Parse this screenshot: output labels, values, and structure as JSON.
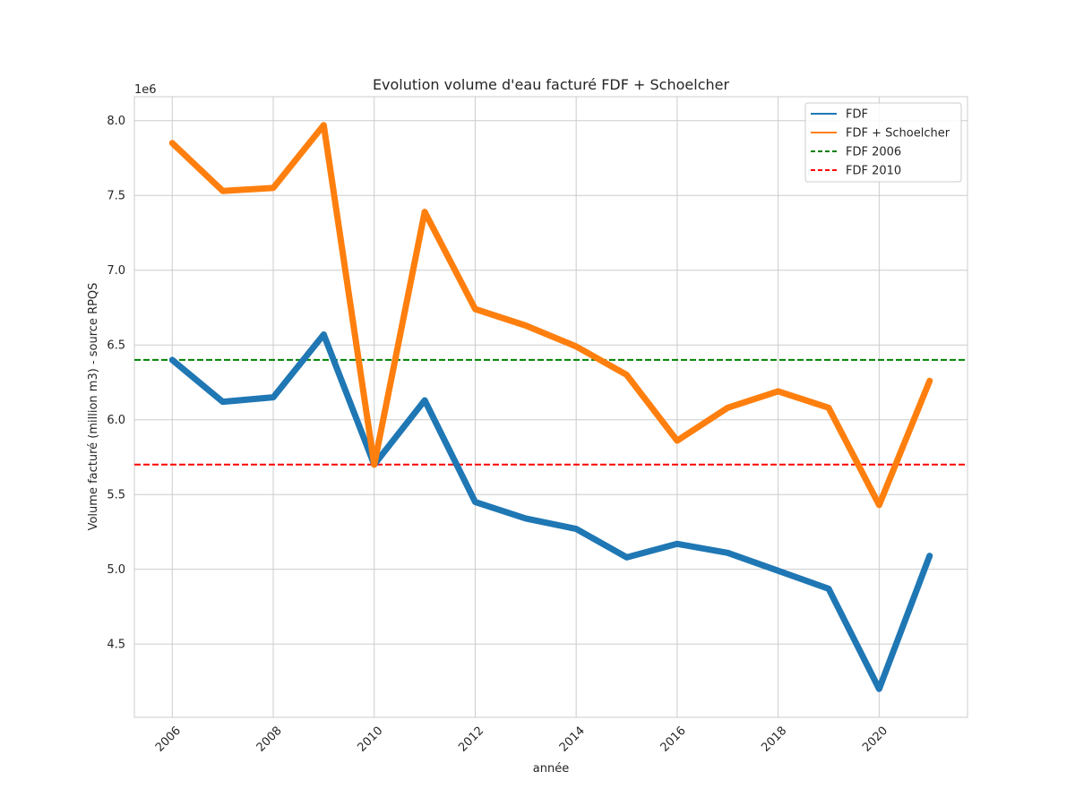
{
  "chart_data": {
    "type": "line",
    "title": "Evolution volume d'eau facturé FDF + Schoelcher",
    "xlabel": "année",
    "ylabel": "Volume facturé (million m3) - source RPQS",
    "y_offset_label": "1e6",
    "x": [
      2006,
      2007,
      2008,
      2009,
      2010,
      2011,
      2012,
      2013,
      2014,
      2015,
      2016,
      2017,
      2018,
      2019,
      2020,
      2021
    ],
    "x_ticks": [
      "2006",
      "2008",
      "2010",
      "2012",
      "2014",
      "2016",
      "2018",
      "2020"
    ],
    "y_ticks": [
      "4.5",
      "5.0",
      "5.5",
      "6.0",
      "6.5",
      "7.0",
      "7.5",
      "8.0"
    ],
    "xlim": [
      2005.25,
      2021.75
    ],
    "ylim": [
      4.01,
      8.16
    ],
    "grid": true,
    "legend_position": "top-right",
    "series": [
      {
        "name": "FDF",
        "color": "#1f77b4",
        "style": "solid",
        "values": [
          6.4,
          6.12,
          6.15,
          6.57,
          5.7,
          6.13,
          5.45,
          5.34,
          5.27,
          5.08,
          5.17,
          5.11,
          4.99,
          4.87,
          4.2,
          5.09
        ]
      },
      {
        "name": "FDF + Schoelcher",
        "color": "#ff7f0e",
        "style": "solid",
        "values": [
          7.85,
          7.53,
          7.55,
          7.97,
          5.7,
          7.39,
          6.74,
          6.63,
          6.49,
          6.3,
          5.86,
          6.08,
          6.19,
          6.08,
          5.43,
          6.26
        ]
      }
    ],
    "reference_lines": [
      {
        "name": "FDF 2006",
        "color": "#008000",
        "style": "dashed",
        "y": 6.4
      },
      {
        "name": "FDF 2010",
        "color": "#ff0000",
        "style": "dashed",
        "y": 5.7
      }
    ]
  }
}
